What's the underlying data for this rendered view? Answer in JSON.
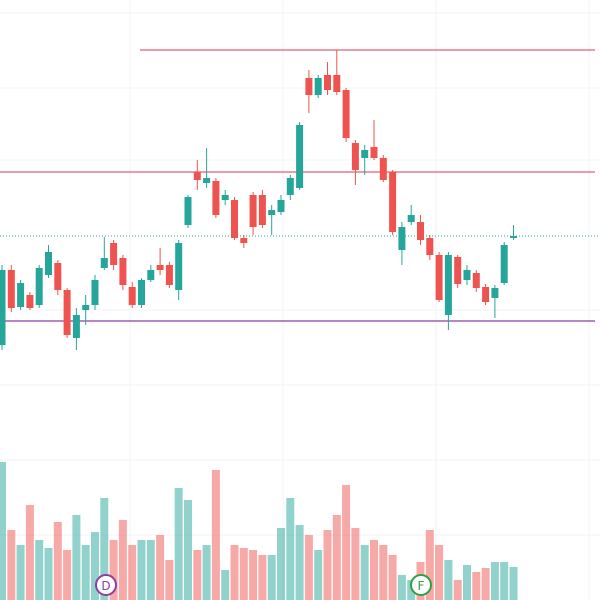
{
  "chart_data": {
    "type": "candlestick",
    "ylim": [
      0,
      600
    ],
    "up_color": "#26a69a",
    "down_color": "#ef5350",
    "open": [
      255,
      330,
      293,
      305,
      295,
      325,
      337,
      310,
      262,
      290,
      295,
      332,
      357,
      342,
      313,
      295,
      320,
      335,
      335,
      310,
      375,
      428,
      417,
      419,
      400,
      400,
      362,
      405,
      405,
      385,
      388,
      405,
      412,
      522,
      505,
      525,
      525,
      510,
      457,
      442,
      453,
      442,
      428,
      350,
      378,
      378,
      362,
      345,
      285,
      343,
      320,
      327,
      313,
      302,
      317,
      362
    ],
    "high": [
      335,
      335,
      320,
      308,
      335,
      355,
      340,
      312,
      292,
      305,
      325,
      363,
      360,
      345,
      318,
      322,
      335,
      352,
      338,
      360,
      405,
      440,
      452,
      422,
      410,
      403,
      365,
      408,
      410,
      395,
      405,
      425,
      478,
      530,
      525,
      538,
      550,
      512,
      460,
      455,
      480,
      445,
      430,
      378,
      395,
      385,
      365,
      348,
      348,
      345,
      335,
      330,
      316,
      315,
      358,
      375
    ],
    "low": [
      250,
      288,
      290,
      290,
      292,
      322,
      305,
      262,
      250,
      275,
      290,
      330,
      330,
      310,
      292,
      292,
      318,
      325,
      312,
      300,
      372,
      410,
      412,
      382,
      395,
      360,
      352,
      365,
      372,
      365,
      385,
      400,
      410,
      487,
      502,
      505,
      505,
      458,
      415,
      425,
      440,
      418,
      365,
      335,
      375,
      355,
      340,
      298,
      270,
      312,
      315,
      308,
      295,
      282,
      315,
      360
    ],
    "close": [
      330,
      292,
      317,
      292,
      332,
      348,
      310,
      265,
      285,
      295,
      320,
      342,
      335,
      315,
      295,
      320,
      330,
      330,
      315,
      357,
      403,
      420,
      422,
      385,
      405,
      362,
      357,
      373,
      375,
      390,
      400,
      422,
      475,
      505,
      522,
      510,
      508,
      462,
      430,
      450,
      442,
      420,
      368,
      373,
      385,
      360,
      345,
      300,
      345,
      316,
      330,
      312,
      298,
      312,
      355,
      364
    ],
    "volume": [
      138,
      70,
      55,
      95,
      60,
      52,
      78,
      50,
      85,
      55,
      68,
      102,
      60,
      80,
      55,
      60,
      60,
      65,
      40,
      112,
      100,
      50,
      55,
      130,
      30,
      55,
      52,
      50,
      45,
      45,
      72,
      102,
      75,
      65,
      50,
      70,
      85,
      115,
      72,
      55,
      60,
      55,
      45,
      25,
      20,
      38,
      70,
      55,
      40,
      20,
      35,
      28,
      32,
      38,
      38,
      33
    ],
    "levels": [
      {
        "value": 550,
        "color": "#e0606e"
      },
      {
        "value": 428,
        "color": "#e0606e"
      },
      {
        "value": 279,
        "color": "#8e3fa0"
      }
    ],
    "last_price": {
      "value": 364,
      "color": "#26a69a"
    },
    "markers": [
      {
        "label": "D",
        "color": "#8e3fa0"
      },
      {
        "label": "F",
        "color": "#2ea043"
      }
    ]
  }
}
